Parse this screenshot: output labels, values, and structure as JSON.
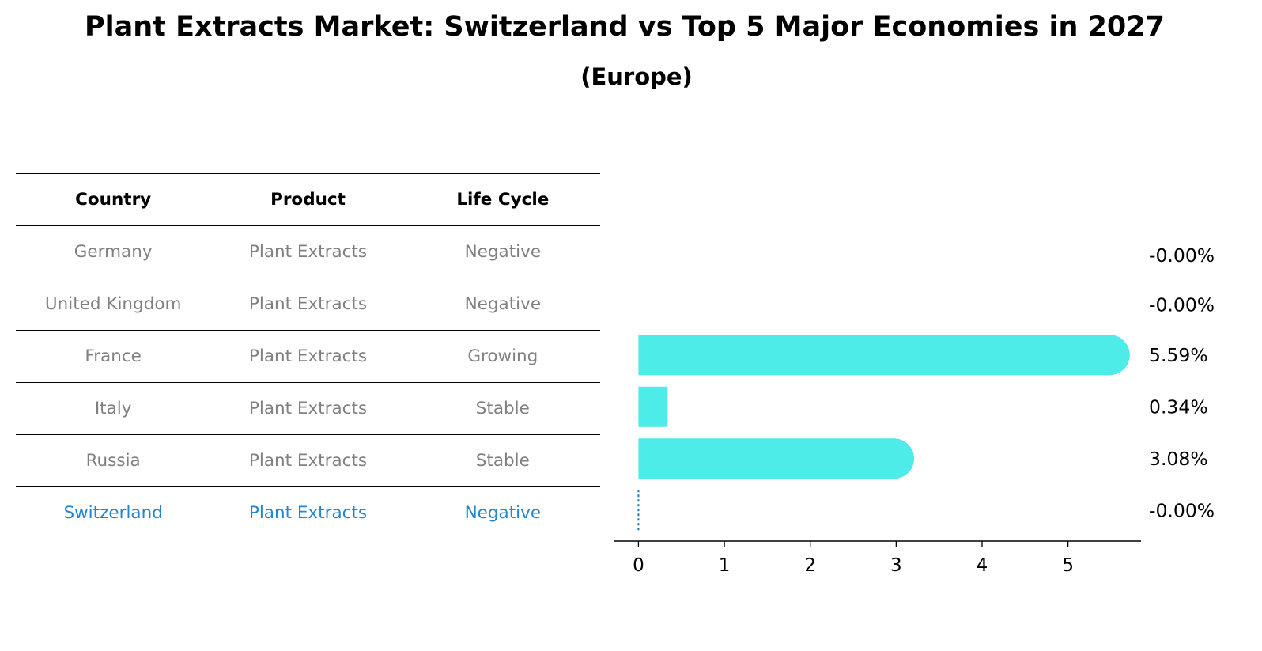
{
  "chart_data": {
    "type": "bar",
    "orientation": "horizontal",
    "title": "Plant Extracts Market: Switzerland vs Top 5 Major Economies in 2027",
    "subtitle": "(Europe)",
    "categories": [
      "Germany",
      "United Kingdom",
      "France",
      "Italy",
      "Russia",
      "Switzerland"
    ],
    "values": [
      -0.0,
      -0.0,
      5.59,
      0.34,
      3.08,
      -0.0
    ],
    "value_labels": [
      "-0.00%",
      "-0.00%",
      "5.59%",
      "0.34%",
      "3.08%",
      "-0.00%"
    ],
    "xlim": [
      -0.28,
      5.85
    ],
    "xticks": [
      0,
      1,
      2,
      3,
      4,
      5
    ],
    "xlabel": "",
    "ylabel": "",
    "grid": false,
    "colors": {
      "bar": "#4dece8",
      "highlight_line": "#1f77b4"
    }
  },
  "table": {
    "headers": [
      "Country",
      "Product",
      "Life Cycle"
    ],
    "rows": [
      [
        "Germany",
        "Plant Extracts",
        "Negative"
      ],
      [
        "United Kingdom",
        "Plant Extracts",
        "Negative"
      ],
      [
        "France",
        "Plant Extracts",
        "Growing"
      ],
      [
        "Italy",
        "Plant Extracts",
        "Stable"
      ],
      [
        "Russia",
        "Plant Extracts",
        "Stable"
      ],
      [
        "Switzerland",
        "Plant Extracts",
        "Negative"
      ]
    ],
    "highlight_row": 5,
    "colors": {
      "text": "#808080",
      "highlight": "#1f86d1"
    }
  }
}
